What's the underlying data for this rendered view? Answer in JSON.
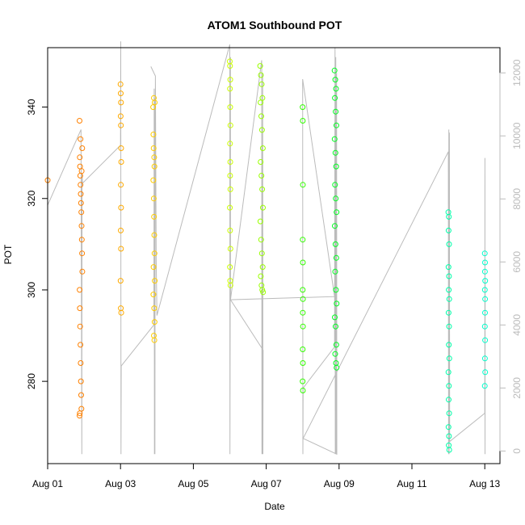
{
  "chart_data": {
    "type": "scatter",
    "title": "ATOM1 Southbound POT",
    "xlabel": "Date",
    "ylabel": "POT",
    "xlim": [
      "2024-08-01T00:00",
      "2024-08-13T10:00"
    ],
    "ylim": [
      262,
      353
    ],
    "y2lim": [
      -400,
      12800
    ],
    "x_ticks": [
      {
        "value": "2024-08-01T00:00",
        "label": "Aug 01"
      },
      {
        "value": "2024-08-03T00:00",
        "label": "Aug 03"
      },
      {
        "value": "2024-08-05T00:00",
        "label": "Aug 05"
      },
      {
        "value": "2024-08-07T00:00",
        "label": "Aug 07"
      },
      {
        "value": "2024-08-09T00:00",
        "label": "Aug 09"
      },
      {
        "value": "2024-08-11T00:00",
        "label": "Aug 11"
      },
      {
        "value": "2024-08-13T00:00",
        "label": "Aug 13"
      }
    ],
    "y_ticks": [
      280,
      300,
      320,
      340
    ],
    "y2_ticks": [
      0,
      2000,
      4000,
      6000,
      8000,
      10000,
      12000
    ],
    "grid": false,
    "colors": {
      "axis": "#000000",
      "right_axis": "#bbbbbb",
      "secondary_line": "#bbbbbb"
    },
    "series": [
      {
        "color": "#ff8000",
        "points": [
          [
            "2024-08-01T00:00",
            324
          ],
          [
            "2024-08-01T21:00",
            337
          ],
          [
            "2024-08-01T21:10",
            329
          ],
          [
            "2024-08-01T21:20",
            327
          ],
          [
            "2024-08-01T21:30",
            325
          ],
          [
            "2024-08-01T21:40",
            323
          ],
          [
            "2024-08-01T21:50",
            321
          ],
          [
            "2024-08-01T22:00",
            319
          ],
          [
            "2024-08-01T22:10",
            317
          ],
          [
            "2024-08-01T22:20",
            314
          ],
          [
            "2024-08-01T22:30",
            311
          ],
          [
            "2024-08-01T22:40",
            308
          ],
          [
            "2024-08-01T22:50",
            304
          ],
          [
            "2024-08-01T21:05",
            300
          ],
          [
            "2024-08-01T21:15",
            296
          ],
          [
            "2024-08-01T21:25",
            292
          ],
          [
            "2024-08-01T21:35",
            288
          ],
          [
            "2024-08-01T21:45",
            284
          ],
          [
            "2024-08-01T21:55",
            280
          ],
          [
            "2024-08-01T22:05",
            277
          ],
          [
            "2024-08-01T22:15",
            274
          ],
          [
            "2024-08-01T21:00",
            272.5
          ],
          [
            "2024-08-01T21:12",
            273
          ],
          [
            "2024-08-01T22:45",
            331
          ],
          [
            "2024-08-01T22:25",
            326
          ],
          [
            "2024-08-01T21:38",
            333
          ]
        ]
      },
      {
        "color": "#ffaa00",
        "points": [
          [
            "2024-08-03T00:00",
            345
          ],
          [
            "2024-08-03T00:10",
            343
          ],
          [
            "2024-08-03T00:20",
            341
          ],
          [
            "2024-08-03T00:05",
            338
          ],
          [
            "2024-08-03T00:15",
            336
          ],
          [
            "2024-08-03T00:25",
            331
          ],
          [
            "2024-08-03T00:30",
            328
          ],
          [
            "2024-08-03T00:12",
            323
          ],
          [
            "2024-08-03T00:22",
            318
          ],
          [
            "2024-08-03T00:08",
            313
          ],
          [
            "2024-08-03T00:18",
            309
          ],
          [
            "2024-08-03T00:02",
            302
          ],
          [
            "2024-08-03T00:14",
            296
          ],
          [
            "2024-08-03T00:28",
            295
          ]
        ]
      },
      {
        "color": "#ffcc00",
        "points": [
          [
            "2024-08-03T21:30",
            340
          ],
          [
            "2024-08-03T22:00",
            342
          ],
          [
            "2024-08-03T22:30",
            341
          ],
          [
            "2024-08-03T21:40",
            334
          ],
          [
            "2024-08-03T21:50",
            331
          ],
          [
            "2024-08-03T22:10",
            329
          ],
          [
            "2024-08-03T22:20",
            327
          ],
          [
            "2024-08-03T21:35",
            324
          ],
          [
            "2024-08-03T21:55",
            320
          ],
          [
            "2024-08-03T22:05",
            316
          ],
          [
            "2024-08-03T22:15",
            312
          ],
          [
            "2024-08-03T22:25",
            308
          ],
          [
            "2024-08-03T21:45",
            305
          ],
          [
            "2024-08-03T22:35",
            302
          ],
          [
            "2024-08-03T21:38",
            299
          ],
          [
            "2024-08-03T22:12",
            296
          ],
          [
            "2024-08-03T22:28",
            293
          ],
          [
            "2024-08-03T21:58",
            290
          ],
          [
            "2024-08-03T22:18",
            289
          ]
        ]
      },
      {
        "color": "#ccff00",
        "points": [
          [
            "2024-08-06T00:00",
            350
          ],
          [
            "2024-08-06T00:10",
            349
          ],
          [
            "2024-08-06T00:20",
            346
          ],
          [
            "2024-08-06T00:05",
            344
          ],
          [
            "2024-08-06T00:15",
            340
          ],
          [
            "2024-08-06T00:25",
            336
          ],
          [
            "2024-08-06T00:08",
            332
          ],
          [
            "2024-08-06T00:18",
            328
          ],
          [
            "2024-08-06T00:12",
            325
          ],
          [
            "2024-08-06T00:22",
            322
          ],
          [
            "2024-08-06T00:02",
            318
          ],
          [
            "2024-08-06T00:14",
            313
          ],
          [
            "2024-08-06T00:24",
            309
          ],
          [
            "2024-08-06T00:06",
            305
          ],
          [
            "2024-08-06T00:16",
            302
          ],
          [
            "2024-08-06T00:26",
            301
          ]
        ]
      },
      {
        "color": "#99ff00",
        "points": [
          [
            "2024-08-06T20:00",
            349
          ],
          [
            "2024-08-06T20:30",
            347
          ],
          [
            "2024-08-06T21:00",
            345
          ],
          [
            "2024-08-06T21:30",
            342
          ],
          [
            "2024-08-06T20:15",
            341
          ],
          [
            "2024-08-06T20:45",
            338
          ],
          [
            "2024-08-06T21:15",
            335
          ],
          [
            "2024-08-06T21:45",
            331
          ],
          [
            "2024-08-06T20:20",
            328
          ],
          [
            "2024-08-06T20:50",
            325
          ],
          [
            "2024-08-06T21:20",
            322
          ],
          [
            "2024-08-06T21:50",
            318
          ],
          [
            "2024-08-06T20:10",
            315
          ],
          [
            "2024-08-06T20:40",
            311
          ],
          [
            "2024-08-06T21:10",
            308
          ],
          [
            "2024-08-06T21:40",
            305
          ],
          [
            "2024-08-06T20:25",
            303
          ],
          [
            "2024-08-06T20:55",
            301
          ],
          [
            "2024-08-06T21:25",
            300
          ],
          [
            "2024-08-06T21:55",
            299.5
          ]
        ]
      },
      {
        "color": "#33ff00",
        "points": [
          [
            "2024-08-08T00:00",
            340
          ],
          [
            "2024-08-08T00:05",
            337
          ],
          [
            "2024-08-08T00:10",
            323
          ],
          [
            "2024-08-08T00:02",
            311
          ],
          [
            "2024-08-08T00:08",
            306
          ],
          [
            "2024-08-08T00:04",
            300
          ],
          [
            "2024-08-08T00:12",
            298
          ],
          [
            "2024-08-08T00:06",
            295
          ],
          [
            "2024-08-08T00:14",
            292
          ],
          [
            "2024-08-08T00:03",
            287
          ],
          [
            "2024-08-08T00:09",
            284
          ],
          [
            "2024-08-08T00:01",
            280
          ],
          [
            "2024-08-08T00:11",
            278
          ]
        ]
      },
      {
        "color": "#00ff20",
        "points": [
          [
            "2024-08-08T21:00",
            348
          ],
          [
            "2024-08-08T21:30",
            346
          ],
          [
            "2024-08-08T22:00",
            344
          ],
          [
            "2024-08-08T21:15",
            342
          ],
          [
            "2024-08-08T21:45",
            339
          ],
          [
            "2024-08-08T22:15",
            336
          ],
          [
            "2024-08-08T21:05",
            333
          ],
          [
            "2024-08-08T21:35",
            330
          ],
          [
            "2024-08-08T22:05",
            327
          ],
          [
            "2024-08-08T21:20",
            323
          ],
          [
            "2024-08-08T21:50",
            320
          ],
          [
            "2024-08-08T22:20",
            317
          ],
          [
            "2024-08-08T21:10",
            314
          ],
          [
            "2024-08-08T21:40",
            310
          ],
          [
            "2024-08-08T22:10",
            307
          ],
          [
            "2024-08-08T21:25",
            304
          ],
          [
            "2024-08-08T21:55",
            300
          ],
          [
            "2024-08-08T22:25",
            297
          ],
          [
            "2024-08-08T21:12",
            294
          ],
          [
            "2024-08-08T21:42",
            292
          ],
          [
            "2024-08-08T22:12",
            288
          ],
          [
            "2024-08-08T21:28",
            286
          ],
          [
            "2024-08-08T22:00",
            284
          ],
          [
            "2024-08-08T22:22",
            283
          ]
        ]
      },
      {
        "color": "#00ffaa",
        "points": [
          [
            "2024-08-12T00:00",
            317
          ],
          [
            "2024-08-12T00:20",
            316
          ],
          [
            "2024-08-12T00:10",
            313
          ],
          [
            "2024-08-12T00:30",
            310
          ],
          [
            "2024-08-12T00:05",
            305
          ],
          [
            "2024-08-12T00:25",
            303
          ],
          [
            "2024-08-12T00:15",
            300
          ],
          [
            "2024-08-12T00:35",
            298
          ],
          [
            "2024-08-12T00:08",
            295
          ],
          [
            "2024-08-12T00:28",
            292
          ],
          [
            "2024-08-12T00:18",
            288
          ],
          [
            "2024-08-12T00:38",
            285
          ],
          [
            "2024-08-12T00:02",
            282
          ],
          [
            "2024-08-12T00:22",
            279
          ],
          [
            "2024-08-12T00:12",
            276
          ],
          [
            "2024-08-12T00:32",
            273
          ],
          [
            "2024-08-12T00:06",
            270
          ],
          [
            "2024-08-12T00:26",
            268
          ],
          [
            "2024-08-12T00:16",
            266
          ],
          [
            "2024-08-12T00:36",
            265
          ]
        ]
      },
      {
        "color": "#00ffcc",
        "points": [
          [
            "2024-08-13T00:00",
            308
          ],
          [
            "2024-08-13T00:10",
            306
          ],
          [
            "2024-08-13T00:05",
            304
          ],
          [
            "2024-08-13T00:15",
            302
          ],
          [
            "2024-08-13T00:02",
            300
          ],
          [
            "2024-08-13T00:12",
            298
          ],
          [
            "2024-08-13T00:08",
            295
          ],
          [
            "2024-08-13T00:04",
            292
          ],
          [
            "2024-08-13T00:14",
            289
          ],
          [
            "2024-08-13T00:06",
            285
          ],
          [
            "2024-08-13T00:16",
            282
          ],
          [
            "2024-08-13T00:01",
            279
          ]
        ]
      }
    ],
    "secondary_series": {
      "axis": "right",
      "type": "line",
      "points": [
        [
          "2024-08-01T00:00",
          7800
        ],
        [
          "2024-08-01T22:00",
          10200
        ],
        [
          "2024-08-01T22:30",
          -100
        ],
        [
          "2024-08-01T22:40",
          8800
        ],
        [
          "2024-08-01T23:00",
          8500
        ],
        [
          "2024-08-03T00:00",
          9700
        ],
        [
          "2024-08-03T00:10",
          13000
        ],
        [
          "2024-08-03T00:20",
          -100
        ],
        [
          "2024-08-03T00:30",
          2700
        ],
        [
          "2024-08-03T22:00",
          4000
        ],
        [
          "2024-08-03T22:10",
          11500
        ],
        [
          "2024-08-03T22:20",
          -100
        ],
        [
          "2024-08-03T22:30",
          11200
        ],
        [
          "2024-08-03T22:40",
          -100
        ],
        [
          "2024-08-03T22:50",
          9800
        ],
        [
          "2024-08-03T23:00",
          11900
        ],
        [
          "2024-08-03T20:00",
          12200
        ],
        [
          "2024-08-03T23:00",
          11900
        ],
        [
          "2024-08-03T23:30",
          6000
        ],
        [
          "2024-08-04T00:00",
          4300
        ],
        [
          "2024-08-06T00:00",
          12900
        ],
        [
          "2024-08-06T00:05",
          -100
        ],
        [
          "2024-08-06T00:15",
          4500
        ],
        [
          "2024-08-06T00:25",
          12500
        ],
        [
          "2024-08-06T00:30",
          4800
        ],
        [
          "2024-08-06T21:00",
          12400
        ],
        [
          "2024-08-06T21:10",
          -100
        ],
        [
          "2024-08-06T21:20",
          9700
        ],
        [
          "2024-08-06T21:30",
          -100
        ],
        [
          "2024-08-06T21:40",
          12000
        ],
        [
          "2024-08-06T21:50",
          -100
        ],
        [
          "2024-08-06T22:00",
          3200
        ],
        [
          "2024-08-06T00:30",
          4800
        ],
        [
          "2024-08-08T21:00",
          4900
        ],
        [
          "2024-08-08T00:00",
          11800
        ],
        [
          "2024-08-08T00:10",
          -100
        ],
        [
          "2024-08-08T00:20",
          2000
        ],
        [
          "2024-08-08T21:00",
          3300
        ],
        [
          "2024-08-08T21:20",
          12800
        ],
        [
          "2024-08-08T21:30",
          -100
        ],
        [
          "2024-08-08T21:50",
          12500
        ],
        [
          "2024-08-08T22:00",
          -100
        ],
        [
          "2024-08-08T22:20",
          12000
        ],
        [
          "2024-08-08T22:30",
          -100
        ],
        [
          "2024-08-08T00:20",
          400
        ],
        [
          "2024-08-12T00:00",
          9500
        ],
        [
          "2024-08-12T00:10",
          -100
        ],
        [
          "2024-08-12T00:20",
          10200
        ],
        [
          "2024-08-12T00:30",
          -100
        ],
        [
          "2024-08-12T00:40",
          10100
        ],
        [
          "2024-08-12T00:50",
          300
        ],
        [
          "2024-08-13T00:00",
          1200
        ],
        [
          "2024-08-13T00:05",
          9300
        ],
        [
          "2024-08-13T00:10",
          -100
        ],
        [
          "2024-08-13T00:15",
          5500
        ]
      ]
    }
  }
}
